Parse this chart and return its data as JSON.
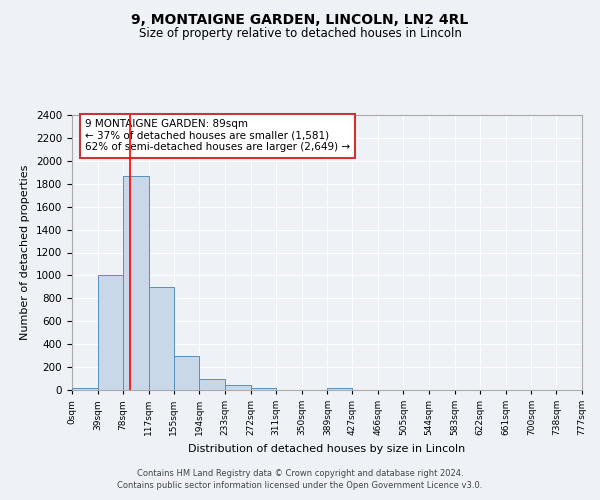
{
  "title": "9, MONTAIGNE GARDEN, LINCOLN, LN2 4RL",
  "subtitle": "Size of property relative to detached houses in Lincoln",
  "xlabel": "Distribution of detached houses by size in Lincoln",
  "ylabel": "Number of detached properties",
  "footer_line1": "Contains HM Land Registry data © Crown copyright and database right 2024.",
  "footer_line2": "Contains public sector information licensed under the Open Government Licence v3.0.",
  "annotation_title": "9 MONTAIGNE GARDEN: 89sqm",
  "annotation_line2": "← 37% of detached houses are smaller (1,581)",
  "annotation_line3": "62% of semi-detached houses are larger (2,649) →",
  "bin_edges": [
    0,
    39,
    78,
    117,
    155,
    194,
    233,
    272,
    311,
    350,
    389,
    427,
    466,
    505,
    544,
    583,
    622,
    661,
    700,
    738,
    777
  ],
  "bin_heights": [
    20,
    1000,
    1870,
    900,
    300,
    100,
    45,
    20,
    0,
    0,
    20,
    0,
    0,
    0,
    0,
    0,
    0,
    0,
    0,
    0
  ],
  "bar_color": "#c8d8e8",
  "bar_edge_color": "#5590bb",
  "red_line_x": 89,
  "ylim": [
    0,
    2400
  ],
  "yticks": [
    0,
    200,
    400,
    600,
    800,
    1000,
    1200,
    1400,
    1600,
    1800,
    2000,
    2200,
    2400
  ],
  "xtick_labels": [
    "0sqm",
    "39sqm",
    "78sqm",
    "117sqm",
    "155sqm",
    "194sqm",
    "233sqm",
    "272sqm",
    "311sqm",
    "350sqm",
    "389sqm",
    "427sqm",
    "466sqm",
    "505sqm",
    "544sqm",
    "583sqm",
    "622sqm",
    "661sqm",
    "700sqm",
    "738sqm",
    "777sqm"
  ],
  "background_color": "#eef2f7",
  "grid_color": "#ffffff",
  "annotation_box_color": "#ffffff",
  "annotation_box_edge": "#cc3333"
}
